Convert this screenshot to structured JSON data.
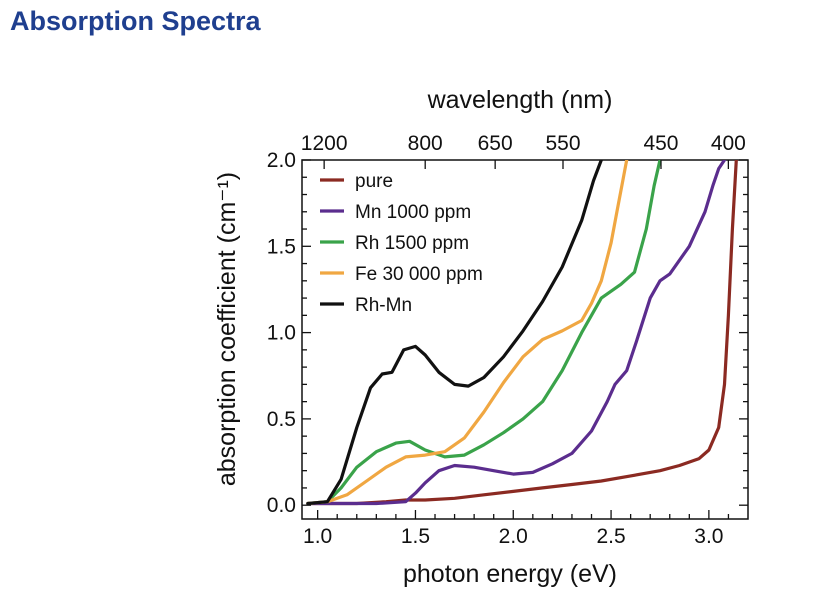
{
  "page": {
    "title": "Absorption Spectra"
  },
  "chart_data": {
    "type": "line",
    "title": "",
    "xlabel": "photon energy (eV)",
    "ylabel": "absorption coefficient (cm⁻¹)",
    "top_xlabel": "wavelength (nm)",
    "xlim": [
      0.92,
      3.2
    ],
    "ylim": [
      -0.08,
      2.0
    ],
    "xticks": [
      1.0,
      1.5,
      2.0,
      2.5,
      3.0
    ],
    "xtick_labels": [
      "1.0",
      "1.5",
      "2.0",
      "2.5",
      "3.0"
    ],
    "yticks": [
      0.0,
      0.5,
      1.0,
      1.5,
      2.0
    ],
    "ytick_labels": [
      "0.0",
      "0.5",
      "1.0",
      "1.5",
      "2.0"
    ],
    "top_ticks_nm": [
      1200,
      800,
      650,
      550,
      450,
      400
    ],
    "top_tick_labels": [
      "1200",
      "800",
      "650",
      "550",
      "450",
      "400"
    ],
    "legend_position": "top-left",
    "grid": false,
    "series": [
      {
        "name": "pure",
        "color": "#8b2a22",
        "x": [
          0.95,
          1.05,
          1.2,
          1.35,
          1.45,
          1.55,
          1.7,
          1.85,
          2.0,
          2.15,
          2.3,
          2.45,
          2.6,
          2.75,
          2.85,
          2.95,
          3.0,
          3.05,
          3.08,
          3.1,
          3.12,
          3.14
        ],
        "y": [
          0.01,
          0.01,
          0.01,
          0.02,
          0.03,
          0.03,
          0.04,
          0.06,
          0.08,
          0.1,
          0.12,
          0.14,
          0.17,
          0.2,
          0.23,
          0.27,
          0.32,
          0.45,
          0.7,
          1.1,
          1.6,
          2.0
        ]
      },
      {
        "name": "Mn 1000 ppm",
        "color": "#5b2d8e",
        "x": [
          0.95,
          1.1,
          1.3,
          1.45,
          1.5,
          1.55,
          1.62,
          1.7,
          1.8,
          1.9,
          2.0,
          2.1,
          2.2,
          2.3,
          2.4,
          2.48,
          2.52,
          2.58,
          2.63,
          2.7,
          2.75,
          2.8,
          2.9,
          2.98,
          3.02,
          3.05,
          3.08
        ],
        "y": [
          0.01,
          0.01,
          0.01,
          0.02,
          0.07,
          0.13,
          0.2,
          0.23,
          0.22,
          0.2,
          0.18,
          0.19,
          0.24,
          0.3,
          0.43,
          0.6,
          0.7,
          0.78,
          0.95,
          1.2,
          1.3,
          1.34,
          1.5,
          1.7,
          1.85,
          1.95,
          2.0
        ]
      },
      {
        "name": "Rh 1500 ppm",
        "color": "#3aa34a",
        "x": [
          0.95,
          1.05,
          1.12,
          1.2,
          1.3,
          1.4,
          1.47,
          1.55,
          1.65,
          1.75,
          1.85,
          1.95,
          2.05,
          2.15,
          2.25,
          2.35,
          2.45,
          2.55,
          2.62,
          2.68,
          2.72,
          2.75
        ],
        "y": [
          0.01,
          0.02,
          0.1,
          0.22,
          0.31,
          0.36,
          0.37,
          0.32,
          0.28,
          0.29,
          0.35,
          0.42,
          0.5,
          0.6,
          0.78,
          1.0,
          1.2,
          1.28,
          1.35,
          1.6,
          1.85,
          2.0
        ]
      },
      {
        "name": "Fe 30 000 ppm",
        "color": "#f0a742",
        "x": [
          0.95,
          1.05,
          1.15,
          1.25,
          1.35,
          1.45,
          1.55,
          1.65,
          1.75,
          1.85,
          1.95,
          2.05,
          2.15,
          2.25,
          2.35,
          2.4,
          2.45,
          2.5,
          2.53,
          2.56,
          2.58
        ],
        "y": [
          0.01,
          0.02,
          0.06,
          0.14,
          0.22,
          0.28,
          0.29,
          0.31,
          0.39,
          0.54,
          0.71,
          0.86,
          0.96,
          1.01,
          1.07,
          1.17,
          1.3,
          1.52,
          1.7,
          1.88,
          2.0
        ]
      },
      {
        "name": "Rh-Mn",
        "color": "#111111",
        "x": [
          0.95,
          1.05,
          1.12,
          1.2,
          1.27,
          1.33,
          1.38,
          1.44,
          1.5,
          1.55,
          1.62,
          1.7,
          1.77,
          1.85,
          1.95,
          2.05,
          2.15,
          2.25,
          2.35,
          2.41,
          2.45
        ],
        "y": [
          0.01,
          0.02,
          0.15,
          0.45,
          0.68,
          0.76,
          0.77,
          0.9,
          0.92,
          0.87,
          0.77,
          0.7,
          0.69,
          0.74,
          0.86,
          1.01,
          1.18,
          1.38,
          1.65,
          1.88,
          2.0
        ]
      }
    ]
  }
}
